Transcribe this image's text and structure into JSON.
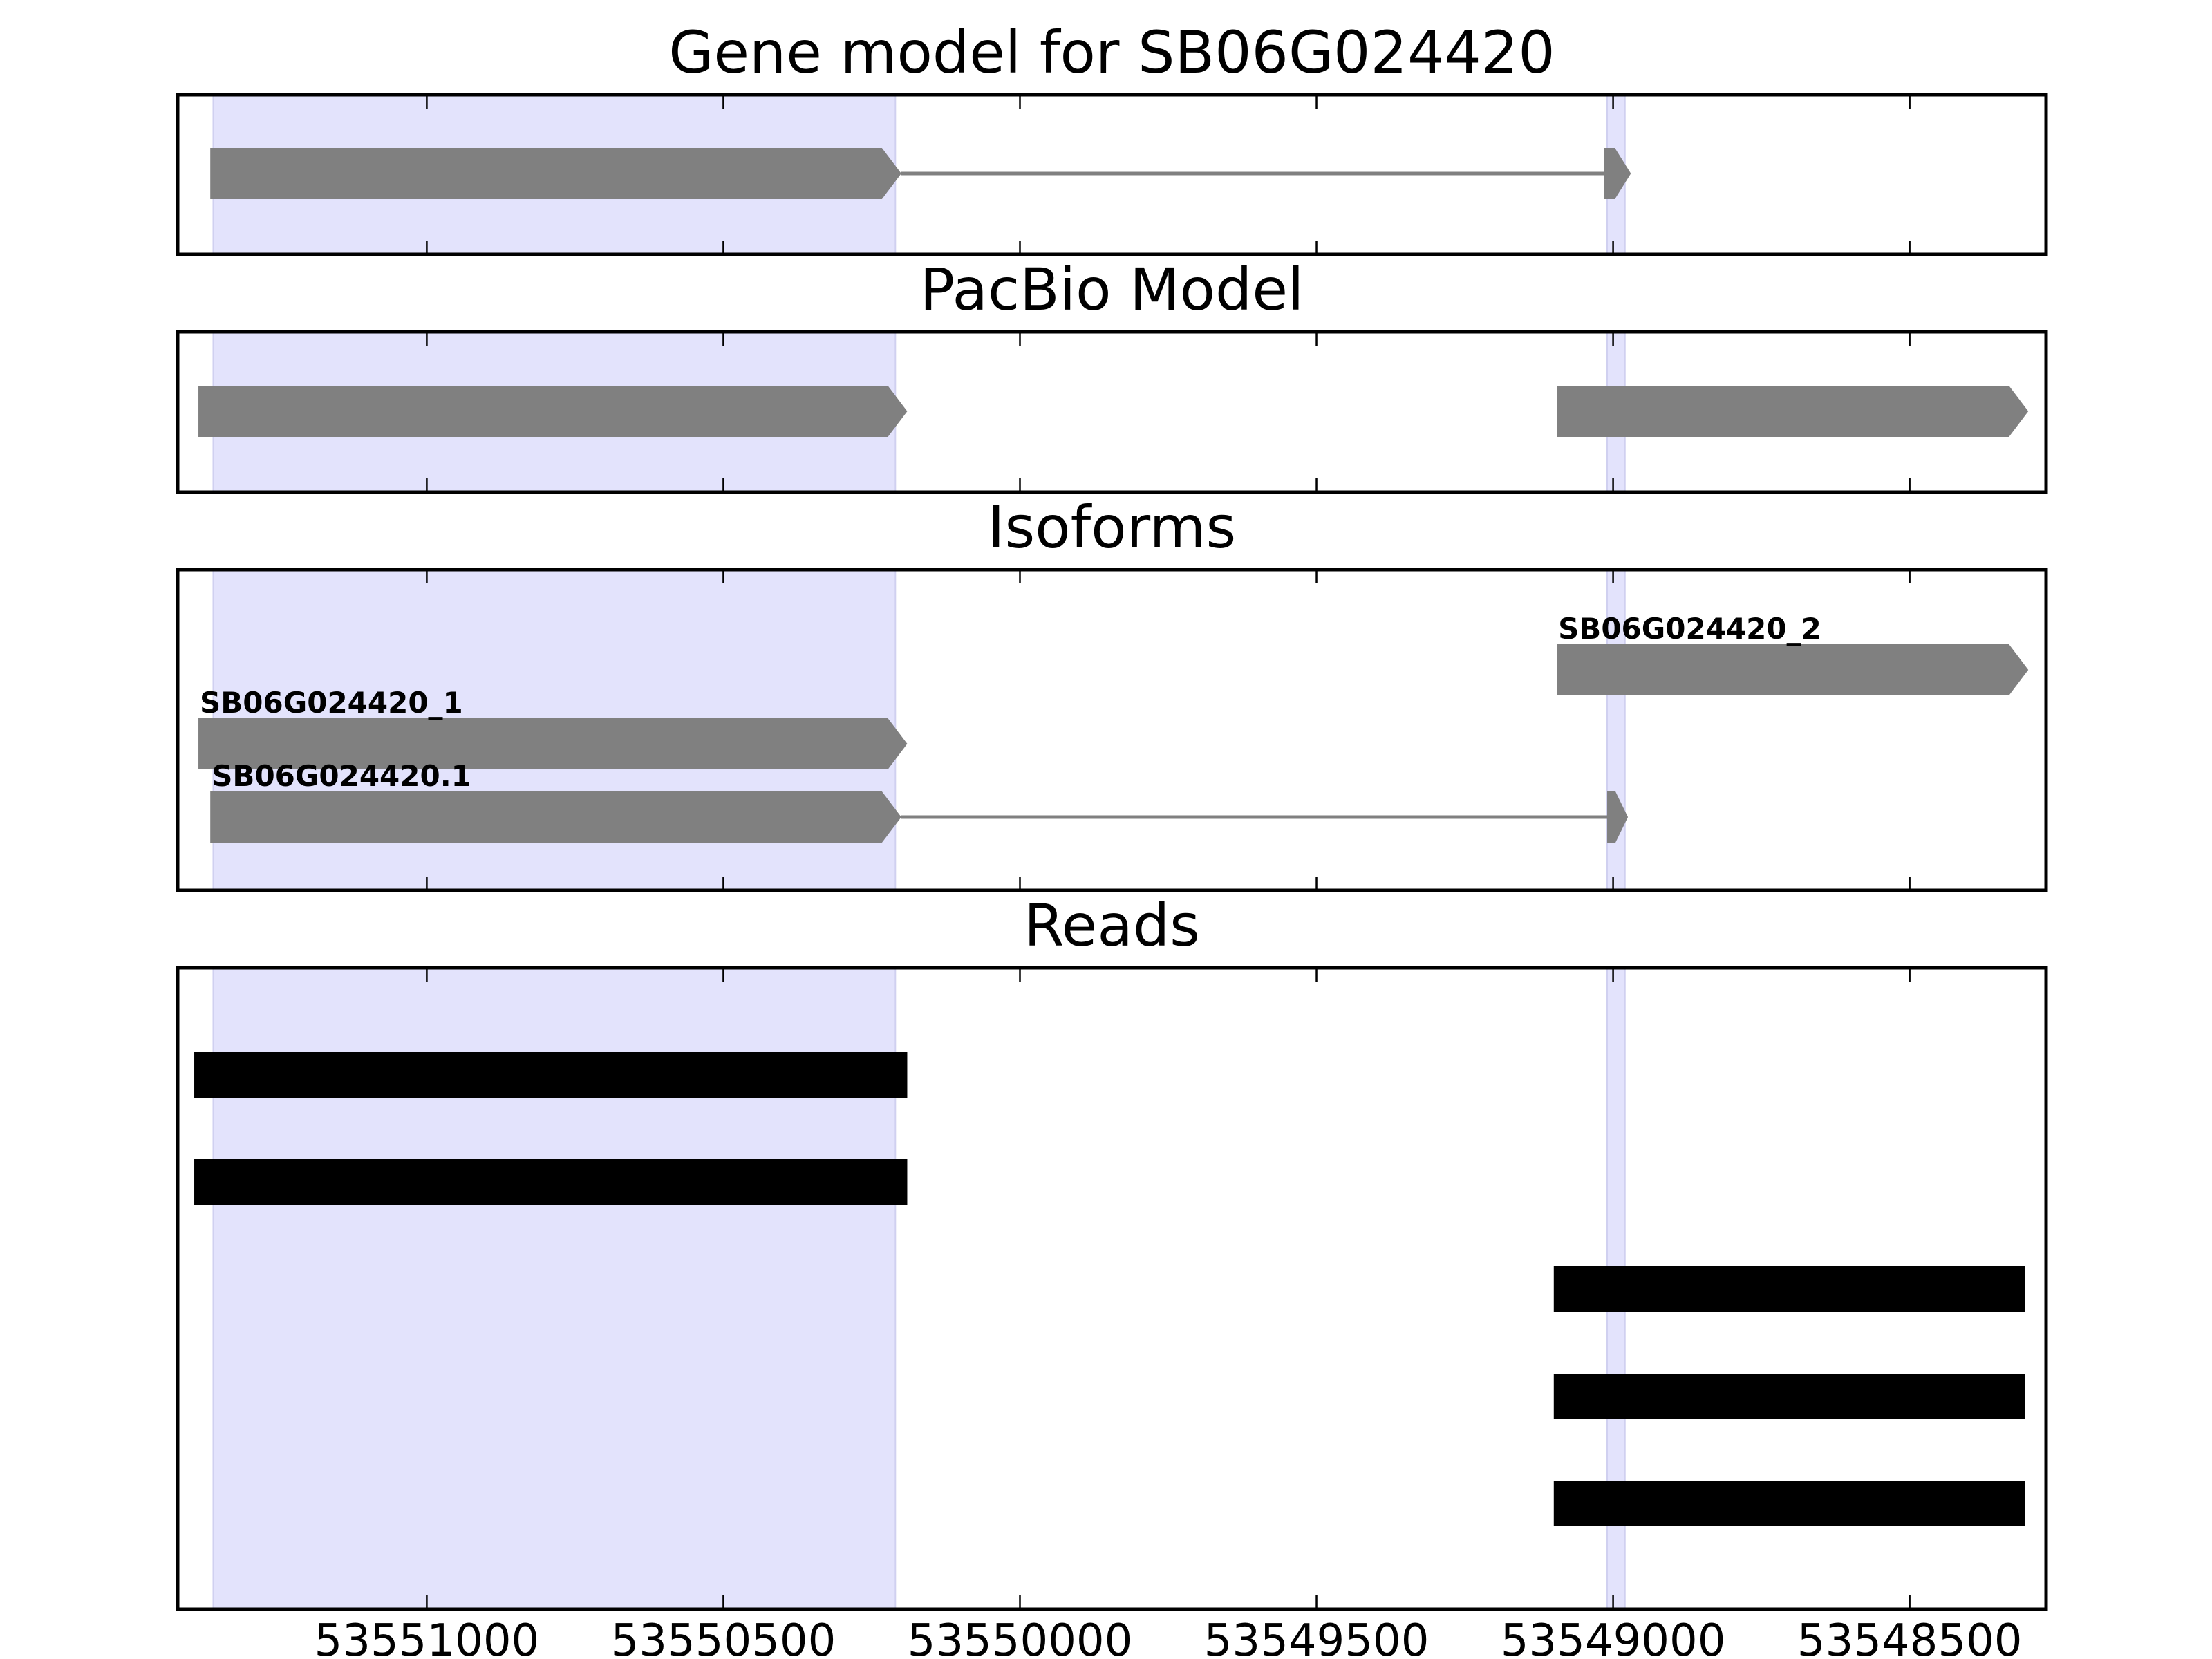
{
  "chart_data": {
    "type": "gene_track",
    "x_axis": {
      "ticks": [
        53551000,
        53550500,
        53550000,
        53549500,
        53549000,
        53548500
      ],
      "tick_labels": [
        "53551000",
        "53550500",
        "53550000",
        "53549500",
        "53549000",
        "53548500"
      ],
      "xlim": [
        53551420,
        53548270
      ],
      "reversed": true
    },
    "highlight_color": "#e3e3fc",
    "feature_color": "#808080",
    "read_color": "#000000",
    "highlighted_regions": [
      {
        "start": 53551360,
        "end": 53550210
      },
      {
        "start": 53549010,
        "end": 53548980
      }
    ],
    "panels": [
      {
        "id": "gene-model",
        "title": "Gene model for SB06G024420",
        "tracks": [
          {
            "label": "",
            "exons": [
              {
                "start": 53551365,
                "end": 53550200
              },
              {
                "start": 53549015,
                "end": 53548970
              }
            ]
          }
        ]
      },
      {
        "id": "pacbio-model",
        "title": "PacBio Model",
        "tracks": [
          {
            "label": "",
            "exons": [
              {
                "start": 53551385,
                "end": 53550190
              }
            ]
          },
          {
            "label": "",
            "exons": [
              {
                "start": 53549095,
                "end": 53548300
              }
            ]
          }
        ]
      },
      {
        "id": "isoforms",
        "title": "Isoforms",
        "tracks": [
          {
            "label": "SB06G024420_2",
            "exons": [
              {
                "start": 53549095,
                "end": 53548300
              }
            ]
          },
          {
            "label": "SB06G024420_1",
            "exons": [
              {
                "start": 53551385,
                "end": 53550190
              }
            ]
          },
          {
            "label": "SB06G024420.1",
            "exons": [
              {
                "start": 53551365,
                "end": 53550200
              },
              {
                "start": 53549010,
                "end": 53548975
              }
            ]
          }
        ]
      },
      {
        "id": "reads",
        "title": "Reads",
        "reads": [
          {
            "start": 53551392,
            "end": 53550190
          },
          {
            "start": 53551392,
            "end": 53550190
          },
          {
            "start": 53549100,
            "end": 53548305
          },
          {
            "start": 53549100,
            "end": 53548305
          },
          {
            "start": 53549100,
            "end": 53548305
          }
        ]
      }
    ]
  }
}
